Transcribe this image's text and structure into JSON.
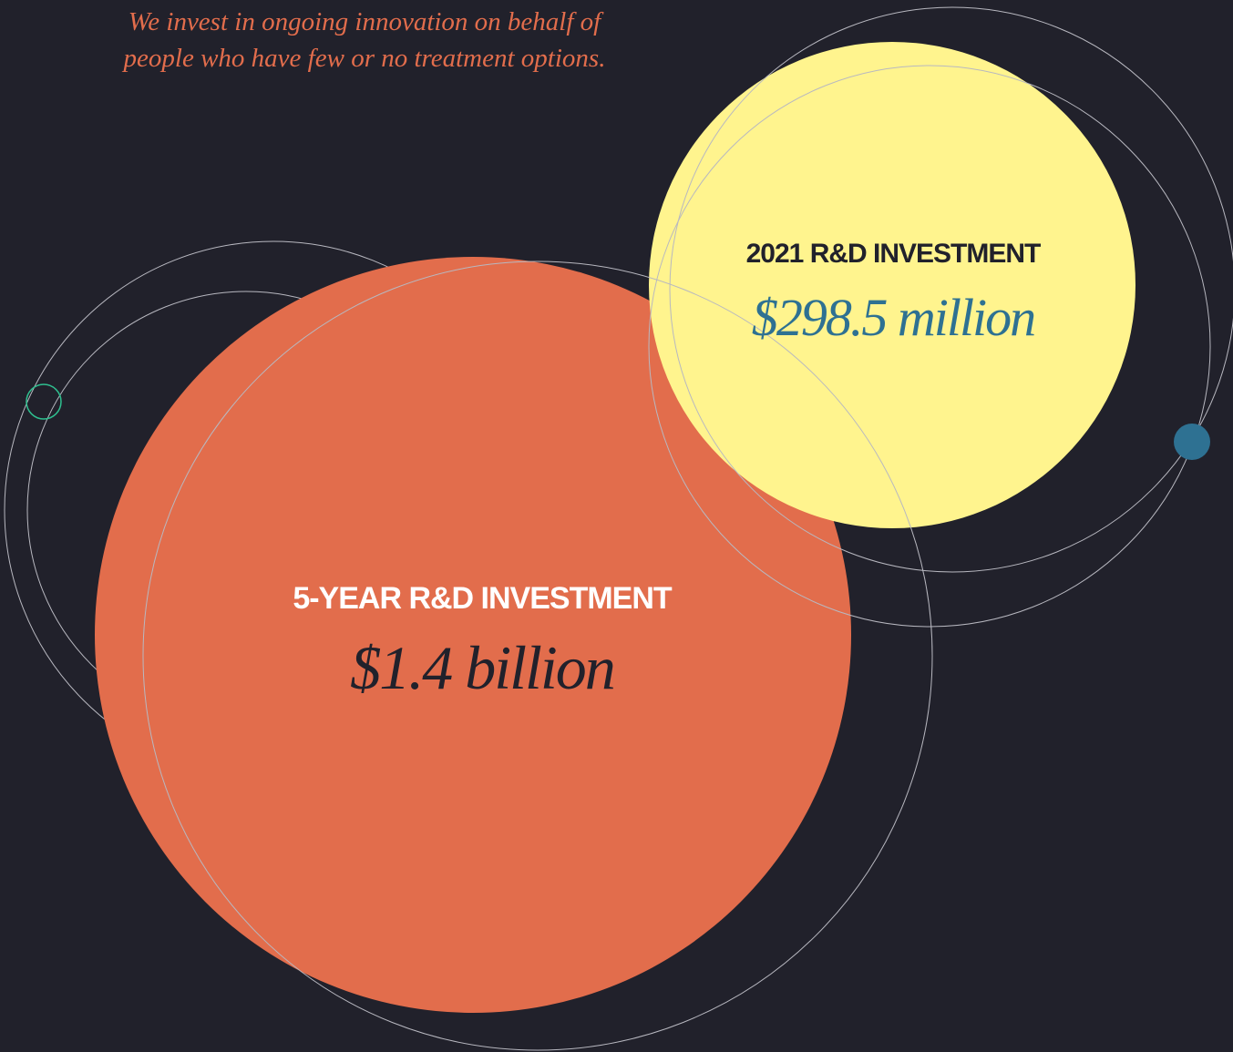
{
  "tagline": {
    "line1": "We invest in ongoing innovation on behalf of",
    "line2": "people who have few or no treatment options."
  },
  "annual": {
    "label": "2021 R&D INVESTMENT",
    "amount": "$298.5 million"
  },
  "five_year": {
    "label": "5-YEAR R&D INVESTMENT",
    "amount": "$1.4 billion"
  }
}
